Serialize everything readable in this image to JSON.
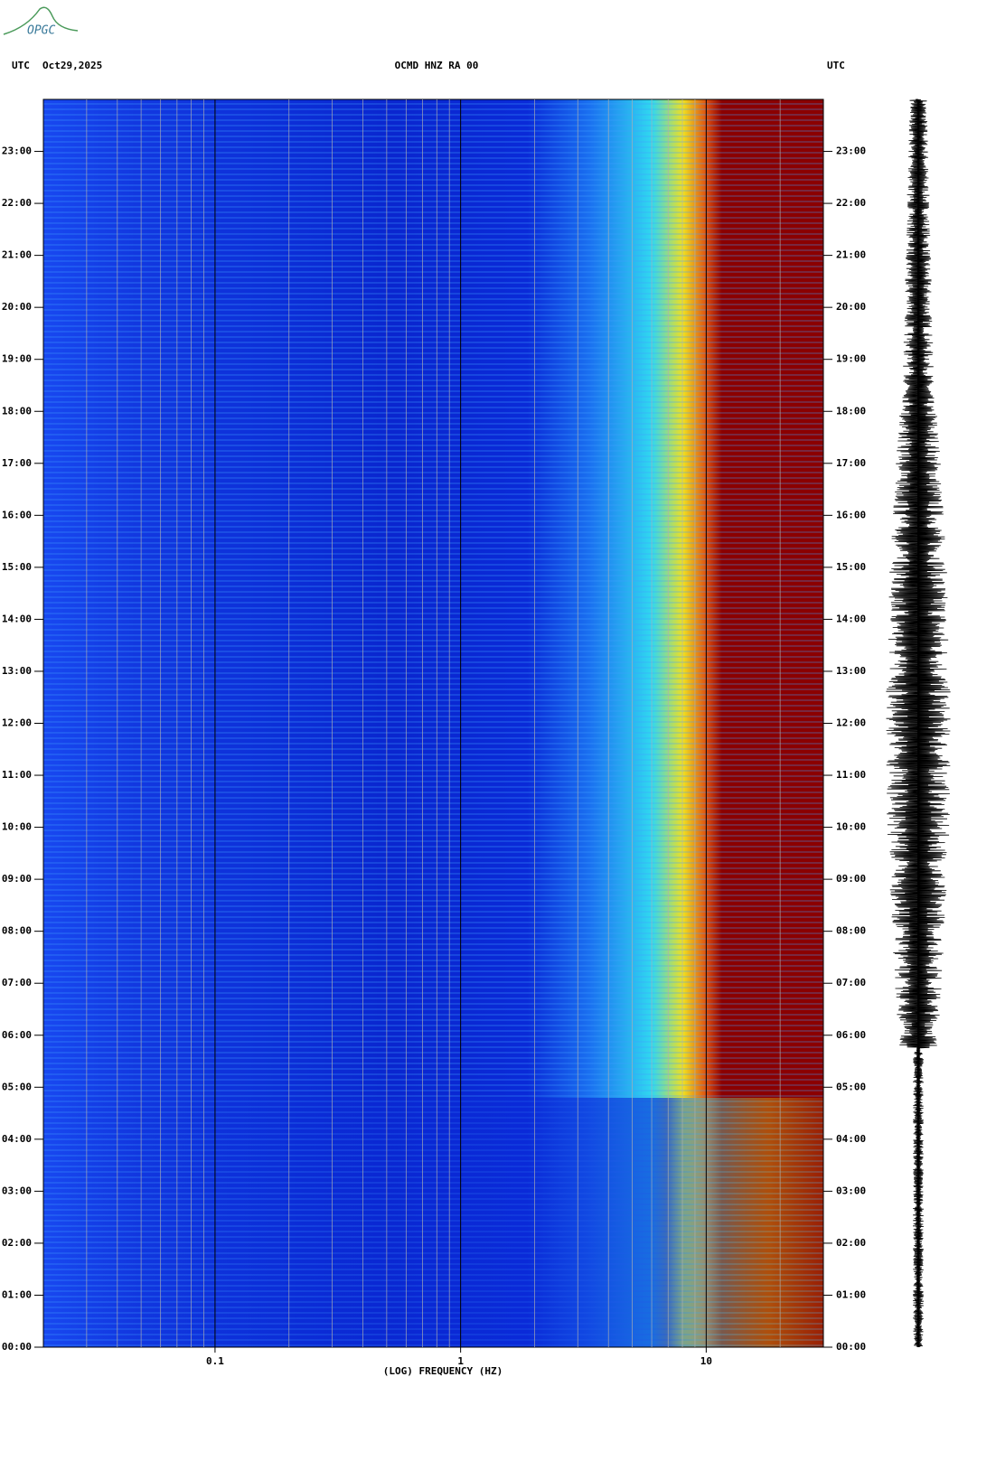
{
  "chart_data": {
    "type": "spectrogram",
    "logo": "OPGC",
    "time_zone_label": "UTC",
    "date": "Oct29,2025",
    "title": "OCMD HNZ RA 00",
    "x_label": "(LOG) FREQUENCY (HZ)",
    "xscale": "log",
    "xlim": [
      0.02,
      30
    ],
    "xticks": [
      0.1,
      1,
      10
    ],
    "ylim": [
      0,
      24
    ],
    "yticks": [
      {
        "value": 0,
        "label": "00:00"
      },
      {
        "value": 1,
        "label": "01:00"
      },
      {
        "value": 2,
        "label": "02:00"
      },
      {
        "value": 3,
        "label": "03:00"
      },
      {
        "value": 4,
        "label": "04:00"
      },
      {
        "value": 5,
        "label": "05:00"
      },
      {
        "value": 6,
        "label": "06:00"
      },
      {
        "value": 7,
        "label": "07:00"
      },
      {
        "value": 8,
        "label": "08:00"
      },
      {
        "value": 9,
        "label": "09:00"
      },
      {
        "value": 10,
        "label": "10:00"
      },
      {
        "value": 11,
        "label": "11:00"
      },
      {
        "value": 12,
        "label": "12:00"
      },
      {
        "value": 13,
        "label": "13:00"
      },
      {
        "value": 14,
        "label": "14:00"
      },
      {
        "value": 15,
        "label": "15:00"
      },
      {
        "value": 16,
        "label": "16:00"
      },
      {
        "value": 17,
        "label": "17:00"
      },
      {
        "value": 18,
        "label": "18:00"
      },
      {
        "value": 19,
        "label": "19:00"
      },
      {
        "value": 20,
        "label": "20:00"
      },
      {
        "value": 21,
        "label": "21:00"
      },
      {
        "value": 22,
        "label": "22:00"
      },
      {
        "value": 23,
        "label": "23:00"
      }
    ],
    "grid": true
  }
}
